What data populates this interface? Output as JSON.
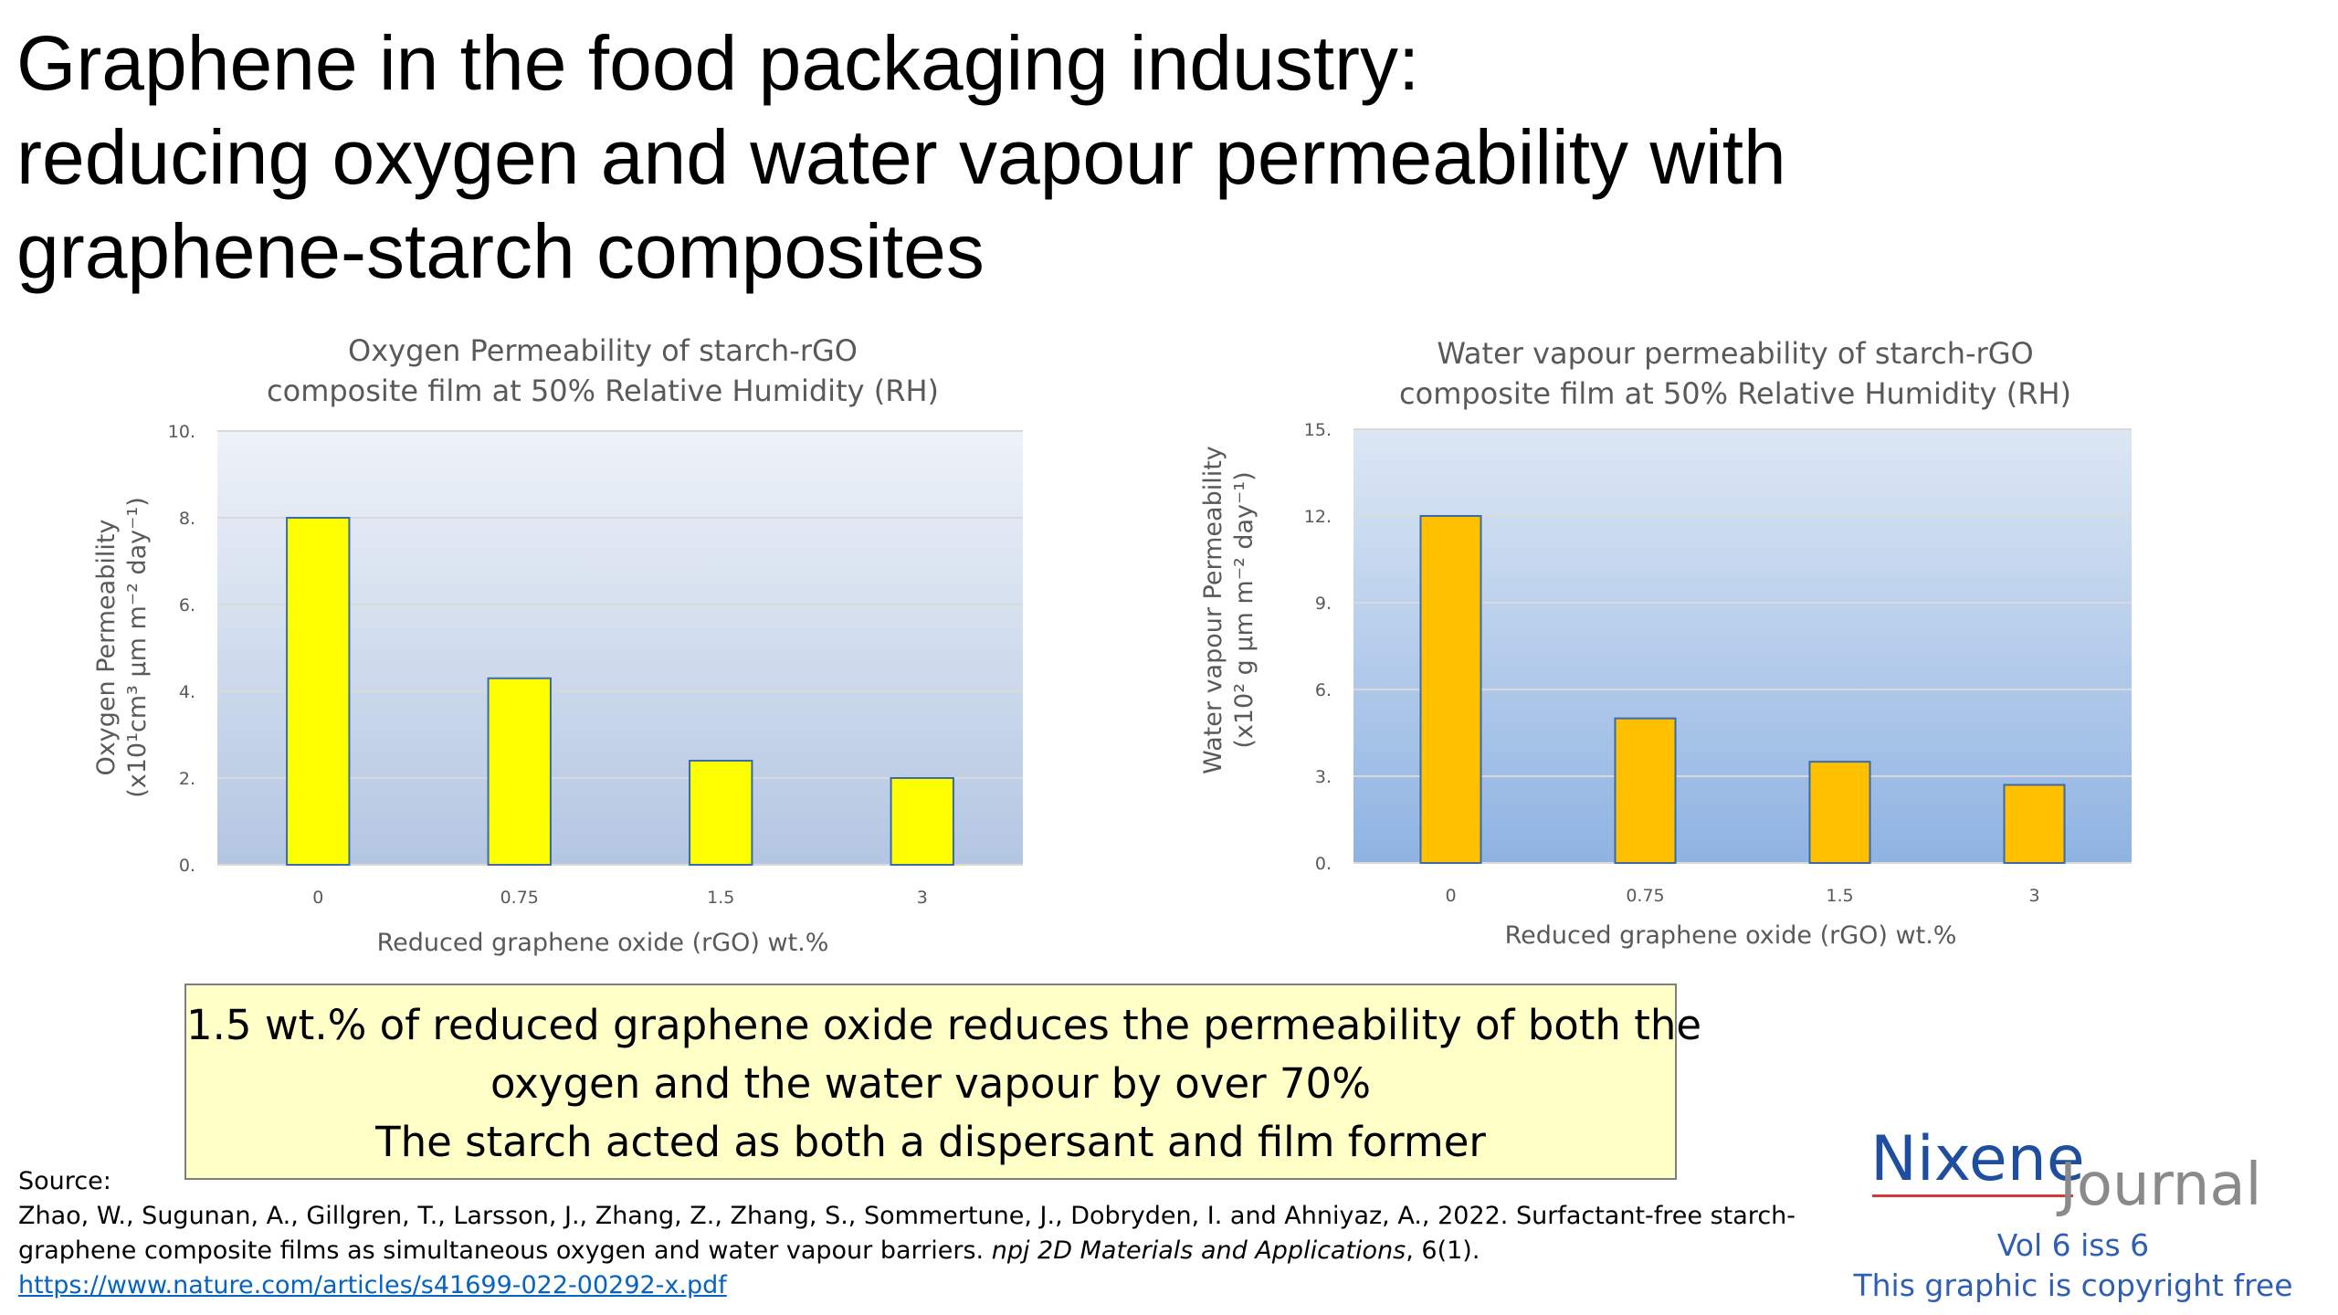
{
  "slide": {
    "title_lines": [
      "Graphene in the food packaging industry:",
      "reducing oxygen and water vapour permeability with",
      "graphene-starch composites"
    ]
  },
  "chart_data": [
    {
      "type": "bar",
      "title_lines": [
        "Oxygen Permeability of starch-rGO",
        "composite film at 50% Relative Humidity (RH)"
      ],
      "ylabel_lines": [
        "Oxygen Permeability",
        "(x10¹cm³ μm m⁻² day⁻¹)"
      ],
      "xlabel": "Reduced graphene oxide (rGO) wt.%",
      "categories": [
        "0",
        "0.75",
        "1.5",
        "3"
      ],
      "values": [
        8.0,
        4.3,
        2.4,
        2.0
      ],
      "yticks": [
        "0.",
        "2.",
        "4.",
        "6.",
        "8.",
        "10."
      ],
      "ylim": [
        0,
        10
      ],
      "bar_color": "#ffff00",
      "bar_edge": "#3a6aa8",
      "bg_top": "#eef2f8",
      "bg_bottom": "#b3c6e2",
      "grid": true
    },
    {
      "type": "bar",
      "title_lines": [
        "Water vapour permeability of starch-rGO",
        "composite film at 50% Relative Humidity (RH)"
      ],
      "ylabel_lines": [
        "Water vapour  Permeability",
        "(x10² g μm m⁻² day⁻¹)"
      ],
      "xlabel": "Reduced graphene oxide (rGO) wt.%",
      "categories": [
        "0",
        "0.75",
        "1.5",
        "3"
      ],
      "values": [
        12.0,
        5.0,
        3.5,
        2.7
      ],
      "yticks": [
        "0.",
        "3.",
        "6.",
        "9.",
        "12.",
        "15."
      ],
      "ylim": [
        0,
        15
      ],
      "bar_color": "#ffc000",
      "bar_edge": "#3a6aa8",
      "bg_top": "#dde7f4",
      "bg_bottom": "#8fb3e2",
      "grid": true
    }
  ],
  "callout": {
    "lines": [
      "1.5 wt.% of reduced graphene oxide reduces the permeability of both the",
      "oxygen and the water vapour by over 70%",
      "The starch acted as both a dispersant and film former"
    ],
    "bg_color": "#ffffc8"
  },
  "source": {
    "label": "Source:",
    "citation_line1": "Zhao, W., Sugunan, A., Gillgren, T., Larsson, J., Zhang, Z., Zhang, S., Sommertune, J., Dobryden, I. and Ahniyaz, A., 2022. Surfactant-free starch-",
    "citation_line2_pre": "graphene composite films as simultaneous oxygen and water vapour barriers. ",
    "citation_journal": "npj 2D Materials and Applications",
    "citation_line2_post": ", 6(1).",
    "url": "https://www.nature.com/articles/s41699-022-00292-x.pdf"
  },
  "brand": {
    "name_part1": "Nixene",
    "name_part2": "Journal",
    "volume": "Vol 6 iss 6",
    "notice": "This graphic is copyright free"
  }
}
